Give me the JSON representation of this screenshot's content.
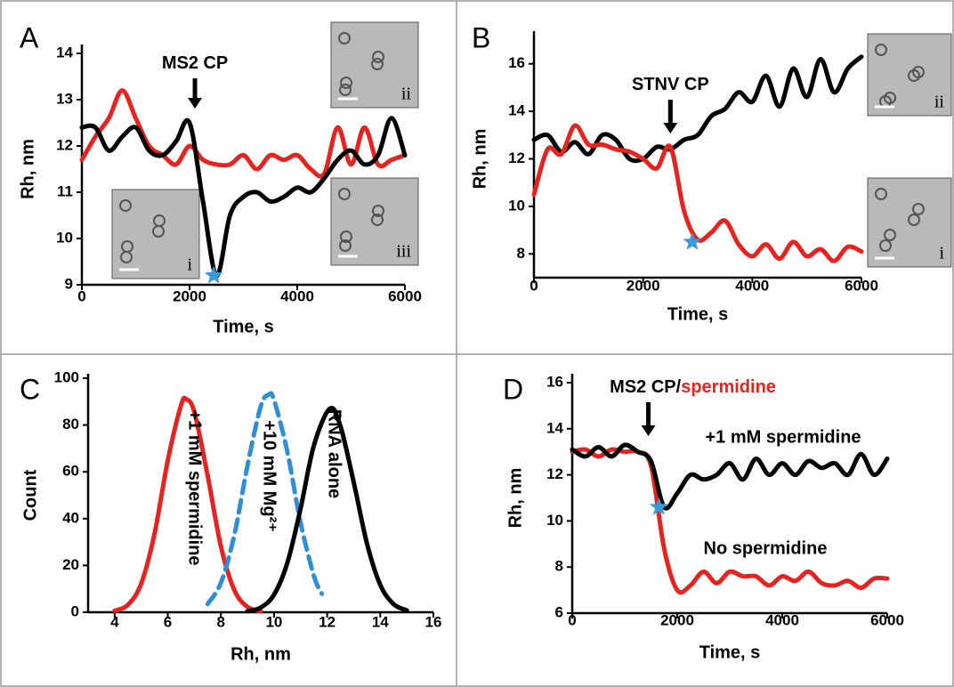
{
  "chart_data": [
    {
      "type": "line",
      "panel": "A",
      "xlabel": "Time, s",
      "ylabel": "Rh, nm",
      "x": [
        0,
        250,
        500,
        750,
        1000,
        1250,
        1500,
        1750,
        2000,
        2250,
        2500,
        2750,
        3000,
        3250,
        3500,
        3750,
        4000,
        4250,
        4500,
        4750,
        5000,
        5250,
        5500,
        5750,
        6000
      ],
      "series": [
        {
          "color": "#e8231f",
          "values": [
            11.7,
            12.2,
            12.6,
            13.2,
            12.6,
            12.0,
            11.8,
            11.6,
            12.0,
            11.7,
            11.6,
            11.6,
            11.8,
            11.5,
            11.8,
            11.7,
            11.8,
            11.5,
            11.4,
            12.4,
            11.6,
            12.4,
            11.6,
            11.7,
            11.8
          ]
        },
        {
          "color": "#000000",
          "values": [
            12.4,
            12.4,
            11.9,
            12.2,
            12.4,
            11.9,
            11.8,
            12.1,
            12.5,
            10.8,
            9.2,
            10.5,
            10.9,
            11.0,
            10.8,
            10.9,
            11.1,
            11.0,
            11.3,
            11.7,
            11.9,
            11.6,
            11.8,
            12.6,
            11.8
          ]
        }
      ],
      "xlim": [
        0,
        6000
      ],
      "xticks": [
        0,
        2000,
        4000,
        6000
      ],
      "ylim": [
        9,
        14
      ],
      "yticks": [
        9,
        10,
        11,
        12,
        13,
        14
      ],
      "marker": {
        "x": 2450,
        "y": 9.2,
        "color": "#3a9ad9"
      },
      "annotation": {
        "text": "MS2 CP",
        "x": 2100
      },
      "insets": [
        "i",
        "ii",
        "iii"
      ]
    },
    {
      "type": "line",
      "panel": "B",
      "xlabel": "Time, s",
      "ylabel": "Rh, nm",
      "x": [
        0,
        250,
        500,
        750,
        1000,
        1250,
        1500,
        1750,
        2000,
        2250,
        2500,
        2750,
        3000,
        3250,
        3500,
        3750,
        4000,
        4250,
        4500,
        4750,
        5000,
        5250,
        5500,
        5750,
        6000
      ],
      "series": [
        {
          "color": "#000000",
          "values": [
            12.8,
            13.0,
            12.3,
            12.7,
            12.2,
            13.0,
            12.8,
            12.0,
            12.0,
            12.5,
            12.4,
            12.8,
            13.0,
            13.8,
            14.1,
            14.8,
            14.4,
            15.5,
            14.2,
            15.8,
            14.6,
            16.2,
            14.8,
            15.8,
            16.3
          ]
        },
        {
          "color": "#e8231f",
          "values": [
            10.5,
            12.4,
            12.2,
            13.4,
            12.6,
            12.6,
            12.4,
            12.3,
            12.0,
            11.6,
            12.5,
            9.8,
            8.6,
            8.9,
            9.4,
            8.4,
            7.9,
            8.4,
            7.8,
            8.5,
            7.9,
            8.2,
            7.7,
            8.3,
            8.1
          ]
        }
      ],
      "xlim": [
        0,
        6000
      ],
      "xticks": [
        0,
        2000,
        4000,
        6000
      ],
      "ylim": [
        7,
        17
      ],
      "yticks": [
        8,
        10,
        12,
        14,
        16
      ],
      "marker": {
        "x": 2900,
        "y": 8.5,
        "color": "#3a9ad9"
      },
      "annotation": {
        "text": "STNV CP",
        "x": 2500
      },
      "insets": [
        "ii",
        "i"
      ]
    },
    {
      "type": "line",
      "panel": "C",
      "xlabel": "Rh, nm",
      "ylabel": "Count",
      "series": [
        {
          "name": "+1 mM spermidine",
          "color": "#e8231f",
          "x": [
            4,
            4.5,
            5,
            5.5,
            6,
            6.5,
            6.7,
            7,
            7.5,
            8,
            8.5,
            9,
            9.5
          ],
          "values": [
            0.6,
            3.2,
            12.3,
            33.5,
            64.8,
            88.5,
            91,
            85.5,
            58.4,
            28.2,
            9.6,
            2.3,
            0.4
          ]
        },
        {
          "name": "+10 mM Mg²⁺",
          "color": "#2e8fd6",
          "dashed": true,
          "x": [
            7.5,
            8,
            8.5,
            9,
            9.5,
            9.8,
            10,
            10.5,
            11,
            11.5,
            11.8
          ],
          "values": [
            3.5,
            12.6,
            32.8,
            62.7,
            88,
            93,
            90.7,
            68.7,
            38.2,
            15.6,
            7.9
          ]
        },
        {
          "name": "RNA alone",
          "color": "#000000",
          "x": [
            9,
            9.5,
            10,
            10.5,
            11,
            11.5,
            12.1,
            12.5,
            13,
            13.5,
            14,
            14.5,
            15
          ],
          "values": [
            0.4,
            2.0,
            7.5,
            21.0,
            44.4,
            71.2,
            87,
            79.6,
            55.5,
            29.3,
            11.7,
            3.5,
            0.8
          ]
        }
      ],
      "xlim": [
        3,
        16
      ],
      "xticks": [
        4,
        6,
        8,
        10,
        12,
        14,
        16
      ],
      "ylim": [
        0,
        100
      ],
      "yticks": [
        0,
        20,
        40,
        60,
        80,
        100
      ]
    },
    {
      "type": "line",
      "panel": "D",
      "xlabel": "Time, s",
      "ylabel": "Rh, nm",
      "x": [
        0,
        250,
        500,
        750,
        1000,
        1250,
        1500,
        1750,
        2000,
        2250,
        2500,
        2750,
        3000,
        3250,
        3500,
        3750,
        4000,
        4250,
        4500,
        4750,
        5000,
        5250,
        5500,
        5750,
        6000
      ],
      "series": [
        {
          "name": "+1 mM spermidine",
          "color": "#e8231f",
          "values": [
            13.0,
            13.1,
            12.8,
            13.1,
            13.0,
            13.0,
            12.4,
            8.8,
            7.0,
            7.2,
            7.8,
            7.3,
            7.8,
            7.6,
            7.6,
            7.2,
            7.6,
            7.4,
            7.8,
            7.3,
            7.2,
            7.4,
            7.1,
            7.5,
            7.5
          ]
        },
        {
          "name": "No spermidine",
          "color": "#000000",
          "values": [
            13.1,
            12.8,
            13.2,
            12.8,
            13.3,
            13.0,
            12.6,
            10.6,
            11.2,
            12.0,
            11.8,
            12.0,
            12.5,
            11.8,
            12.7,
            12.0,
            12.5,
            12.0,
            12.6,
            12.3,
            12.5,
            12.0,
            12.9,
            12.0,
            12.7
          ]
        }
      ],
      "xlim": [
        0,
        6000
      ],
      "xticks": [
        0,
        2000,
        4000,
        6000
      ],
      "ylim": [
        6,
        16
      ],
      "yticks": [
        6,
        8,
        10,
        12,
        14,
        16
      ],
      "marker": {
        "x": 1650,
        "y": 10.6,
        "color": "#3a9ad9"
      },
      "annotation": {
        "text": "MS2 CP/",
        "text2": "spermidine",
        "color2": "#e8231f",
        "x": 1450
      }
    }
  ]
}
